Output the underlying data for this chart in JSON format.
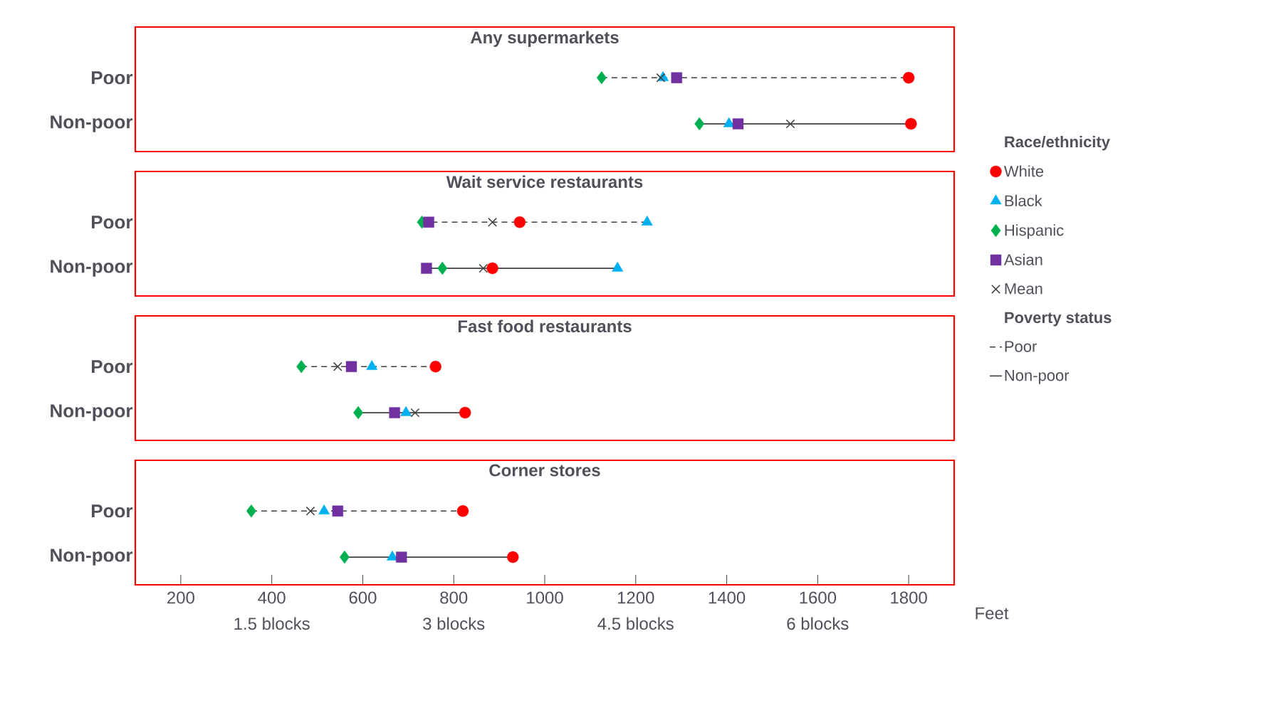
{
  "chart_data": [
    {
      "type": "scatter",
      "orientation": "horizontal",
      "title": "Any supermarkets",
      "categories": [
        "Poor",
        "Non-poor"
      ],
      "line_style": [
        "dashed",
        "solid"
      ],
      "xlim": [
        100,
        1900
      ],
      "tick_labels": "y",
      "legend": "right",
      "legend_title": "Race/ethnicity",
      "annotations": [
        "Poverty status"
      ],
      "series": [
        {
          "name": "White",
          "marker": "circle",
          "color": "#ff0000",
          "values": [
            1800,
            1805
          ]
        },
        {
          "name": "Black",
          "marker": "triangle",
          "color": "#00b0f0",
          "values": [
            1260,
            1405
          ]
        },
        {
          "name": "Hispanic",
          "marker": "diamond",
          "color": "#00b050",
          "values": [
            1125,
            1340
          ]
        },
        {
          "name": "Asian",
          "marker": "square",
          "color": "#7030a0",
          "values": [
            1290,
            1425
          ]
        },
        {
          "name": "Mean",
          "marker": "cross",
          "color": "#404040",
          "values": [
            1255,
            1540
          ]
        }
      ]
    },
    {
      "type": "scatter",
      "orientation": "horizontal",
      "title": "Wait service restaurants",
      "categories": [
        "Poor",
        "Non-poor"
      ],
      "line_style": [
        "dashed",
        "solid"
      ],
      "xlim": [
        100,
        1900
      ],
      "tick_labels": "y",
      "series": [
        {
          "marker": "circle",
          "color": "#ff0000",
          "values": [
            945,
            885
          ]
        },
        {
          "marker": "triangle",
          "color": "#00b0f0",
          "values": [
            1225,
            1160
          ]
        },
        {
          "marker": "diamond",
          "color": "#00b050",
          "values": [
            730,
            775
          ]
        },
        {
          "marker": "square",
          "color": "#7030a0",
          "values": [
            745,
            740
          ]
        },
        {
          "marker": "cross",
          "color": "#404040",
          "values": [
            885,
            865
          ]
        }
      ]
    },
    {
      "type": "scatter",
      "orientation": "horizontal",
      "title": "Fast food restaurants",
      "categories": [
        "Poor",
        "Non-poor"
      ],
      "line_style": [
        "dashed",
        "solid"
      ],
      "xlim": [
        100,
        1900
      ],
      "tick_labels": "y",
      "series": [
        {
          "marker": "circle",
          "color": "#ff0000",
          "values": [
            760,
            825
          ]
        },
        {
          "marker": "triangle",
          "color": "#00b0f0",
          "values": [
            620,
            695
          ]
        },
        {
          "marker": "diamond",
          "color": "#00b050",
          "values": [
            465,
            590
          ]
        },
        {
          "marker": "square",
          "color": "#7030a0",
          "values": [
            575,
            670
          ]
        },
        {
          "marker": "cross",
          "color": "#404040",
          "values": [
            545,
            715
          ]
        }
      ]
    },
    {
      "type": "scatter",
      "orientation": "horizontal",
      "title": "Corner stores",
      "categories": [
        "Poor",
        "Non-poor"
      ],
      "line_style": [
        "dashed",
        "solid"
      ],
      "xlim": [
        100,
        1900
      ],
      "xticks": [
        200,
        400,
        600,
        800,
        1000,
        1200,
        1400,
        1600,
        1800
      ],
      "xlabel": "Feet",
      "x2lim": [
        0.375,
        7.125
      ],
      "x2ticks": [
        {
          "value": 1.5,
          "label": "1.5 blocks"
        },
        {
          "value": 3,
          "label": "3 blocks"
        },
        {
          "value": 4.5,
          "label": "4.5 blocks"
        },
        {
          "value": 6,
          "label": "6 blocks"
        }
      ],
      "series": [
        {
          "marker": "circle",
          "color": "#ff0000",
          "values": [
            820,
            930
          ]
        },
        {
          "marker": "triangle",
          "color": "#00b0f0",
          "values": [
            515,
            665
          ]
        },
        {
          "marker": "diamond",
          "color": "#00b050",
          "values": [
            355,
            560
          ]
        },
        {
          "marker": "square",
          "color": "#7030a0",
          "values": [
            545,
            685
          ]
        },
        {
          "marker": "cross",
          "color": "#404040",
          "values": [
            485,
            null
          ]
        }
      ]
    }
  ]
}
